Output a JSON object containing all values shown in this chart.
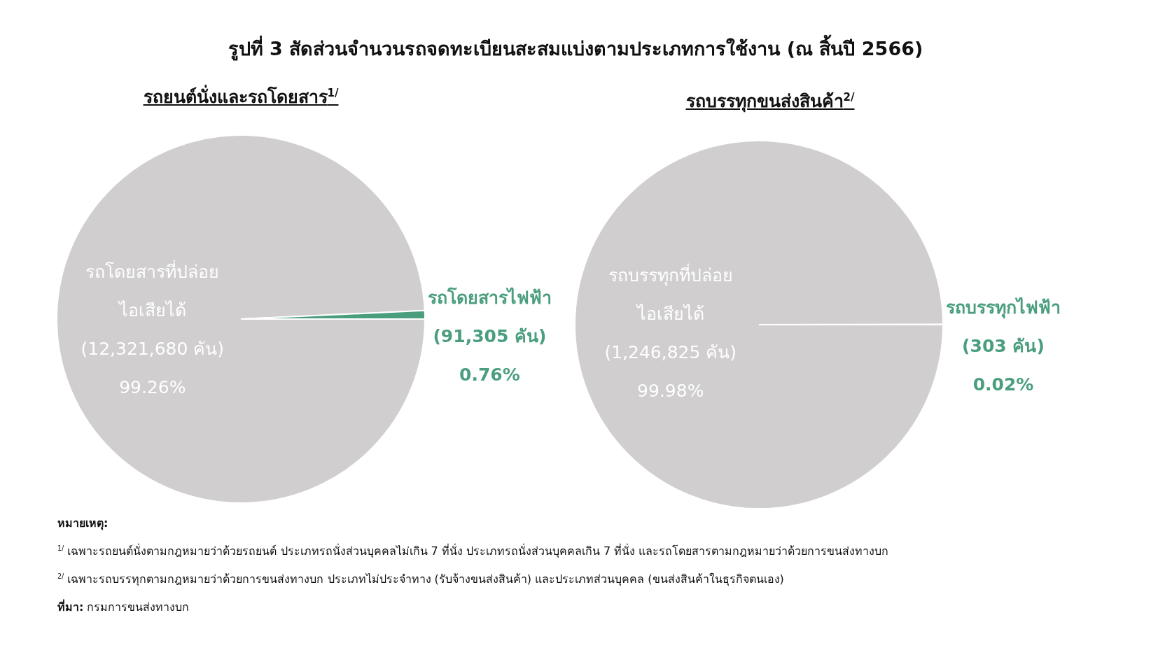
{
  "chart_data": [
    {
      "type": "pie",
      "title": "รูปที่ 3 สัดส่วนจำนวนรถจดทะเบียนสะสมแบ่งตามประเภทการใช้งาน (ณ สิ้นปี 2566)",
      "subtitle": "รถยนต์นั่งและรถโดยสาร$^{1/}$",
      "categories": [
        "รถโดยสารที่ปล่อย\nไอเสียได้",
        "รถโดยสารไฟฟ้า"
      ],
      "values": [
        12321680,
        91305
      ],
      "colors": [
        "#d0cece",
        "#4a9e7e"
      ],
      "value_labels": [
        "(12,321,680 คัน)\n99.26%",
        "(91,305 คัน)\n0.76%"
      ],
      "legend": false
    },
    {
      "type": "pie",
      "subtitle": "รถบรรทุกขนส่งสินค้า$^{2/}$",
      "categories": [
        "รถบรรทุกที่ปล่อย\nไอเสียได้",
        "รถบรรทุกไฟฟ้า"
      ],
      "values": [
        1246825,
        303
      ],
      "colors": [
        "#d0cece",
        "#4a9e7e"
      ],
      "value_labels": [
        "(1,246,825 คัน)\n99.98%",
        "(303 คัน)\n0.02%"
      ],
      "legend": false,
      "annotations": [
        "หมายเหตุ:",
        "$^{1/}$ เฉพาะรถยนต์นั่งตามกฎหมายว่าด้วยรถยนต์ ประเภทรถนั่งส่วนบุคคลไม่เกิน 7 ที่นั่ง ประเภทรถนั่งส่วนบุคคลเกิน 7 ที่นั่ง  และรถโดยสารตามกฎหมายว่าด้วยการขนส่งทางบก",
        "$^{2/}$ เฉพาะรถบรรทุกตามกฎหมายว่าด้วยการขนส่งทางบก ประเภทไม่ประจำทาง (รับจ้างขนส่งสินค้า) และประเภทส่วนบุคคล (ขนส่งสินค้าในธุรกิจตนเอง)",
        "ที่มา: กรมการขนส่งทางบก"
      ]
    }
  ]
}
